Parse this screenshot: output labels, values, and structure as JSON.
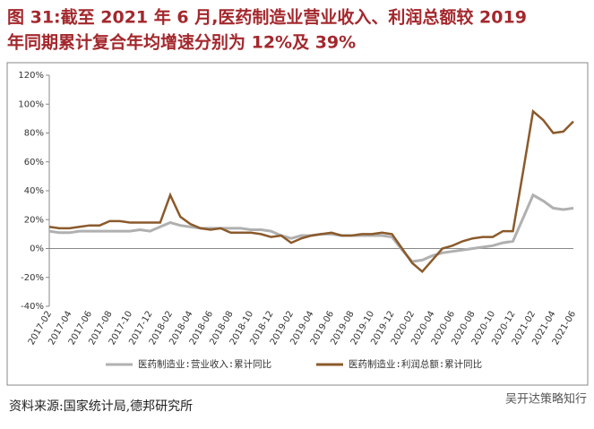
{
  "chart_data": {
    "type": "line",
    "title": "图 31:截至 2021 年 6 月,医药制造业营业收入、利润总额较 2019 年同期累计复合年均增速分别为 12%及 39%",
    "title_lines": [
      "图 31:截至 2021 年 6 月,医药制造业营业收入、利润总额较 2019",
      "年同期累计复合年均增速分别为 12%及 39%"
    ],
    "source": "资料来源:国家统计局,德邦研究所",
    "watermark": "吴开达策略知行",
    "categories": [
      "2017-02",
      null,
      "2017-04",
      null,
      "2017-06",
      null,
      "2017-08",
      null,
      "2017-10",
      null,
      "2017-12",
      null,
      "2018-02",
      null,
      "2018-04",
      null,
      "2018-06",
      null,
      "2018-08",
      null,
      "2018-10",
      null,
      "2018-12",
      null,
      "2019-02",
      null,
      "2019-04",
      null,
      "2019-06",
      null,
      "2019-08",
      null,
      "2019-10",
      null,
      "2019-12",
      null,
      "2020-02",
      null,
      "2020-04",
      null,
      "2020-06",
      null,
      "2020-08",
      null,
      "2020-10",
      null,
      "2020-12",
      null,
      "2021-02",
      null,
      "2021-04",
      null,
      "2021-06"
    ],
    "series": [
      {
        "name": "医药制造业:营业收入:累计同比",
        "color": "#b0b0b0",
        "values": [
          12,
          11,
          11,
          12,
          12,
          12,
          12,
          12,
          12,
          13,
          12,
          15,
          18,
          16,
          15,
          14,
          14,
          14,
          14,
          14,
          13,
          13,
          12,
          9,
          7,
          9,
          9,
          10,
          10,
          9,
          9,
          9,
          9,
          9,
          8,
          -1,
          -9,
          -8,
          -5,
          -3,
          -2,
          -1,
          0,
          1,
          2,
          4,
          5,
          21,
          37,
          33,
          28,
          27,
          28
        ]
      },
      {
        "name": "医药制造业:利润总额:累计同比",
        "color": "#8b5a2b",
        "values": [
          15,
          14,
          14,
          15,
          16,
          16,
          19,
          19,
          18,
          18,
          18,
          18,
          37,
          22,
          17,
          14,
          13,
          14,
          11,
          11,
          11,
          10,
          8,
          9,
          4,
          7,
          9,
          10,
          11,
          9,
          9,
          10,
          10,
          11,
          10,
          0,
          -10,
          -16,
          -8,
          0,
          2,
          5,
          7,
          8,
          8,
          12,
          12,
          53,
          95,
          89,
          80,
          81,
          88
        ]
      }
    ],
    "ylim": [
      -40,
      120
    ],
    "yticks": [
      {
        "value": -40,
        "label": "-40%"
      },
      {
        "value": -20,
        "label": "-20%"
      },
      {
        "value": 0,
        "label": "0%"
      },
      {
        "value": 20,
        "label": "20%"
      },
      {
        "value": 40,
        "label": "40%"
      },
      {
        "value": 60,
        "label": "60%"
      },
      {
        "value": 80,
        "label": "80%"
      },
      {
        "value": 100,
        "label": "100%"
      },
      {
        "value": 120,
        "label": "120%"
      }
    ],
    "grid": false,
    "legend": "bottom"
  }
}
